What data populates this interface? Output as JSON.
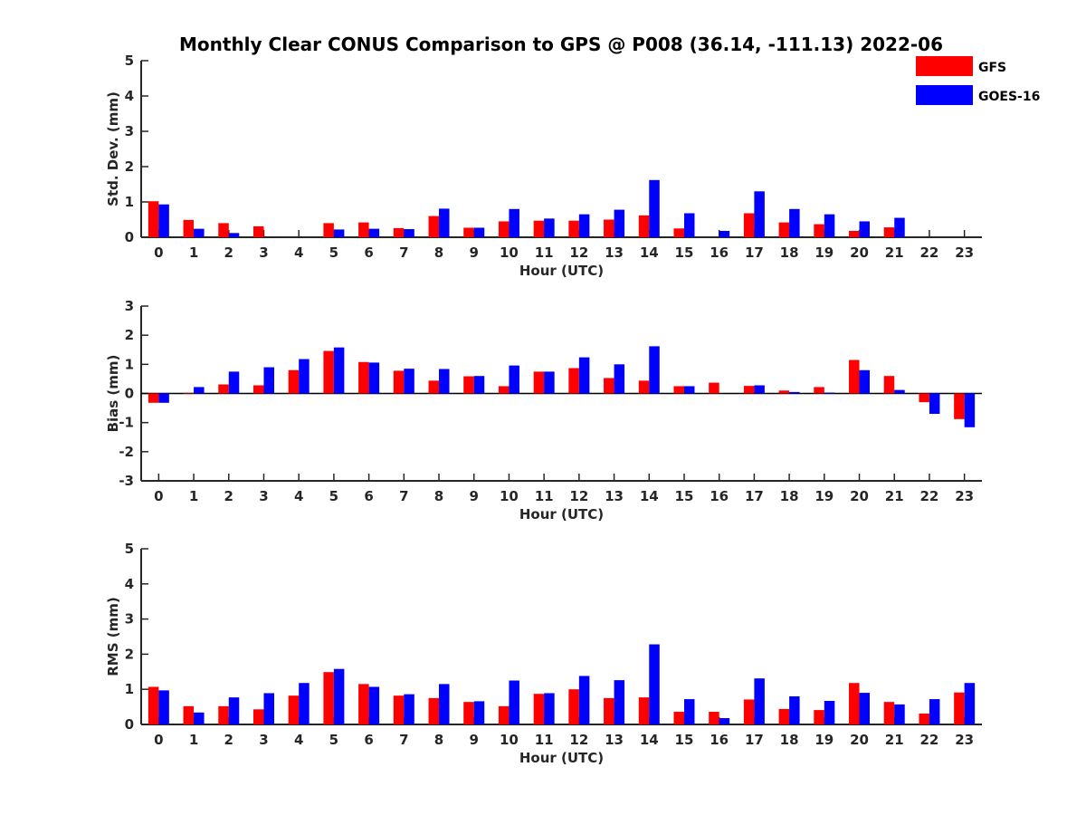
{
  "chart_data": {
    "type": "bar",
    "title": "Monthly Clear CONUS Comparison to GPS @ P008 (36.14, -111.13) 2022-06",
    "categories": [
      "0",
      "1",
      "2",
      "3",
      "4",
      "5",
      "6",
      "7",
      "8",
      "9",
      "10",
      "11",
      "12",
      "13",
      "14",
      "15",
      "16",
      "17",
      "18",
      "19",
      "20",
      "21",
      "22",
      "23"
    ],
    "legend": {
      "location": "top-right",
      "entries": [
        "GFS",
        "GOES-16"
      ]
    },
    "colors": {
      "GFS": "#ff0000",
      "GOES-16": "#0000ff",
      "axis": "#262626"
    },
    "panels": [
      {
        "id": "std",
        "xlabel": "Hour (UTC)",
        "ylabel": "Std. Dev. (mm)",
        "ylim": [
          0,
          5
        ],
        "yticks": [
          0,
          1,
          2,
          3,
          4,
          5
        ],
        "series": [
          {
            "name": "GFS",
            "values": [
              1.02,
              0.49,
              0.4,
              0.31,
              null,
              0.4,
              0.42,
              0.26,
              0.6,
              0.27,
              0.45,
              0.47,
              0.47,
              0.5,
              0.62,
              0.25,
              null,
              0.68,
              0.42,
              0.37,
              0.18,
              0.28,
              null,
              null
            ]
          },
          {
            "name": "GOES-16",
            "values": [
              0.93,
              0.24,
              0.12,
              null,
              null,
              0.22,
              0.24,
              0.23,
              0.81,
              0.27,
              0.8,
              0.53,
              0.65,
              0.78,
              1.62,
              0.68,
              0.18,
              1.3,
              0.8,
              0.65,
              0.45,
              0.55,
              null,
              null
            ]
          }
        ]
      },
      {
        "id": "bias",
        "xlabel": "Hour (UTC)",
        "ylabel": "Bias (mm)",
        "ylim": [
          -3,
          3
        ],
        "yticks": [
          -3,
          -2,
          -1,
          0,
          1,
          2,
          3
        ],
        "series": [
          {
            "name": "GFS",
            "values": [
              -0.32,
              0.02,
              0.31,
              0.28,
              0.8,
              1.46,
              1.08,
              0.78,
              0.44,
              0.59,
              0.25,
              0.75,
              0.87,
              0.53,
              0.44,
              0.25,
              0.37,
              0.26,
              0.1,
              0.22,
              1.15,
              0.6,
              -0.3,
              -0.88
            ]
          },
          {
            "name": "GOES-16",
            "values": [
              -0.32,
              0.22,
              0.75,
              0.9,
              1.18,
              1.58,
              1.06,
              0.85,
              0.84,
              0.6,
              0.96,
              0.75,
              1.24,
              1.0,
              1.62,
              0.25,
              null,
              0.28,
              0.05,
              0.03,
              0.8,
              0.12,
              -0.7,
              -1.16
            ]
          }
        ]
      },
      {
        "id": "rms",
        "xlabel": "Hour (UTC)",
        "ylabel": "RMS (mm)",
        "ylim": [
          0,
          5
        ],
        "yticks": [
          0,
          1,
          2,
          3,
          4,
          5
        ],
        "series": [
          {
            "name": "GFS",
            "values": [
              1.07,
              0.52,
              0.52,
              0.43,
              0.82,
              1.49,
              1.15,
              0.82,
              0.75,
              0.64,
              0.52,
              0.87,
              1.0,
              0.75,
              0.77,
              0.36,
              0.36,
              0.71,
              0.44,
              0.41,
              1.18,
              0.64,
              0.31,
              0.91
            ]
          },
          {
            "name": "GOES-16",
            "values": [
              0.97,
              0.34,
              0.77,
              0.89,
              1.18,
              1.58,
              1.07,
              0.86,
              1.15,
              0.66,
              1.25,
              0.89,
              1.38,
              1.26,
              2.28,
              0.72,
              0.18,
              1.31,
              0.8,
              0.67,
              0.9,
              0.57,
              0.72,
              1.18
            ]
          }
        ]
      }
    ]
  }
}
